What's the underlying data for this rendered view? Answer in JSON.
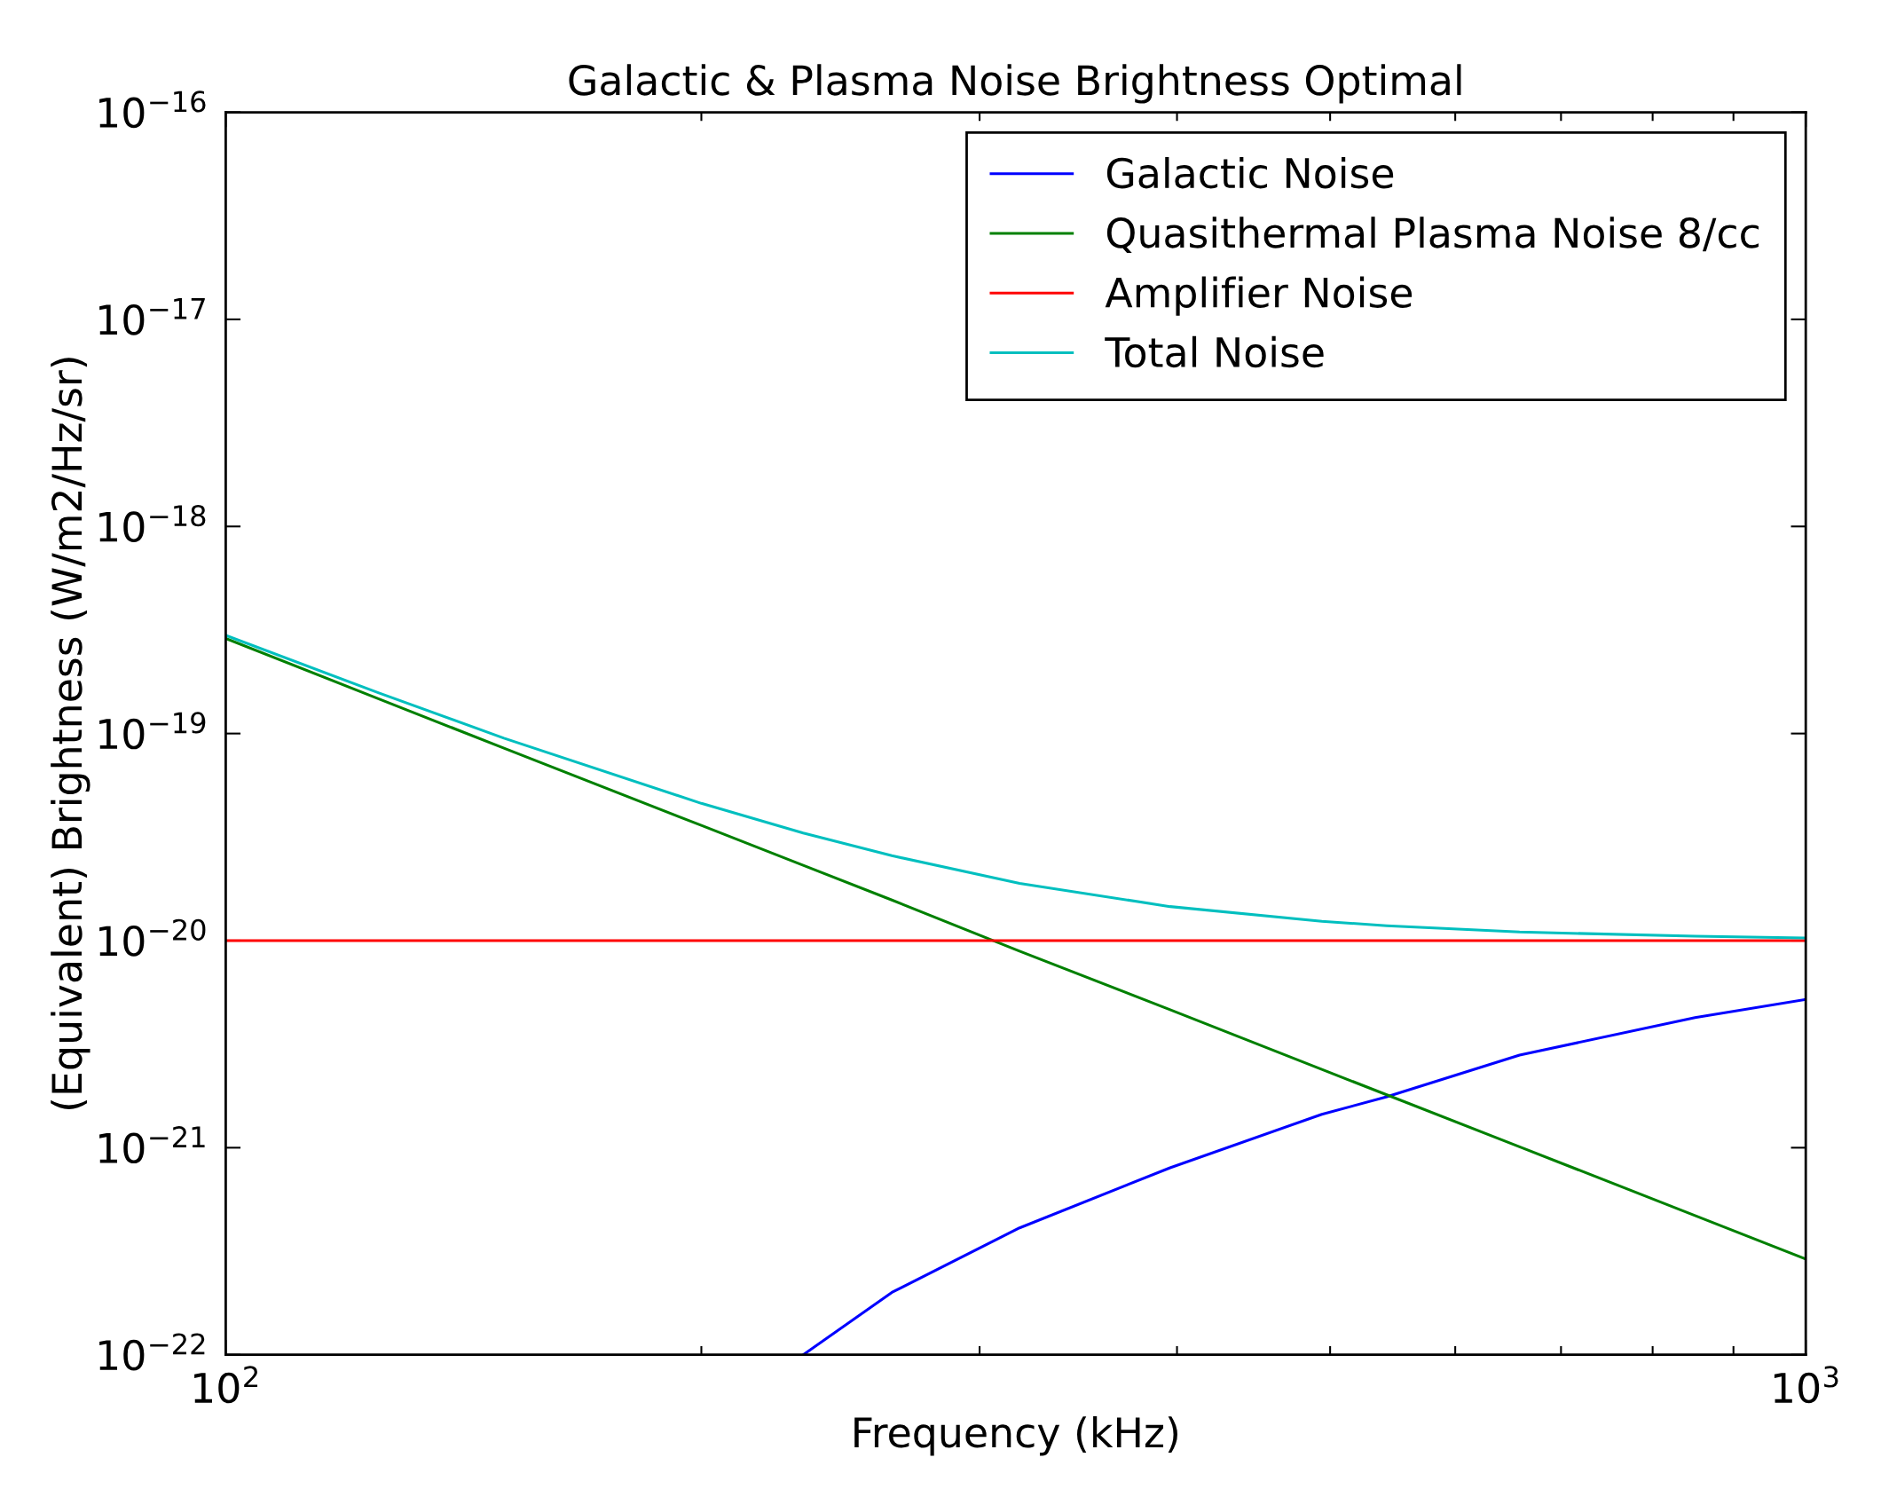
{
  "chart_data": {
    "type": "line",
    "title": "Galactic & Plasma Noise Brightness Optimal",
    "xlabel": "Frequency (kHz)",
    "ylabel": "(Equivalent) Brightness (W/m2/Hz/sr)",
    "x": [
      100,
      125,
      150,
      200,
      232,
      264,
      318,
      396,
      494,
      543,
      659,
      851,
      1000
    ],
    "series": [
      {
        "name": "Galactic Noise",
        "color": "#0000ff",
        "values": [
          null,
          null,
          null,
          null,
          1e-22,
          2e-22,
          4.1e-22,
          8e-22,
          1.45e-21,
          1.76e-21,
          2.8e-21,
          4.25e-21,
          5.2e-21
        ]
      },
      {
        "name": "Quasithermal Plasma Noise 8/cc",
        "color": "#008000",
        "values": [
          2.88e-19,
          1.47e-19,
          8.5e-20,
          3.6e-20,
          2.31e-20,
          1.57e-20,
          8.9e-21,
          4.64e-21,
          2.39e-21,
          1.8e-21,
          1.01e-21,
          4.7e-22,
          2.9e-22
        ]
      },
      {
        "name": "Amplifier Noise",
        "color": "#ff0000",
        "values": [
          1e-20,
          1e-20,
          1e-20,
          1e-20,
          1e-20,
          1e-20,
          1e-20,
          1e-20,
          1e-20,
          1e-20,
          1e-20,
          1e-20,
          1e-20
        ]
      },
      {
        "name": "Total Noise",
        "color": "#00bfbf",
        "values": [
          2.98e-19,
          1.57e-19,
          9.5e-20,
          4.6e-20,
          3.31e-20,
          2.57e-20,
          1.89e-20,
          1.46e-20,
          1.24e-20,
          1.18e-20,
          1.1e-20,
          1.05e-20,
          1.03e-20
        ]
      }
    ],
    "log": "xy",
    "xlim": [
      100,
      1000
    ],
    "ylim": [
      1e-22,
      1e-16
    ],
    "xticks": [
      {
        "value": 100,
        "label": "10$^{2}$"
      },
      {
        "value": 200,
        "label": null
      },
      {
        "value": 300,
        "label": null
      },
      {
        "value": 400,
        "label": null
      },
      {
        "value": 500,
        "label": null
      },
      {
        "value": 600,
        "label": null
      },
      {
        "value": 700,
        "label": null
      },
      {
        "value": 800,
        "label": null
      },
      {
        "value": 900,
        "label": null
      },
      {
        "value": 1000,
        "label": "10$^{3}$"
      }
    ],
    "yticks": [
      {
        "value": 1e-22,
        "label": "10$^{−22}$"
      },
      {
        "value": 1e-21,
        "label": "10$^{−21}$"
      },
      {
        "value": 1e-20,
        "label": "10$^{−20}$"
      },
      {
        "value": 1e-19,
        "label": "10$^{−19}$"
      },
      {
        "value": 1e-18,
        "label": "10$^{−18}$"
      },
      {
        "value": 1e-17,
        "label": "10$^{−17}$"
      },
      {
        "value": 1e-16,
        "label": "10$^{−16}$"
      }
    ],
    "legend": "top right",
    "grid": false,
    "marker": "none",
    "line_style": "solid"
  }
}
